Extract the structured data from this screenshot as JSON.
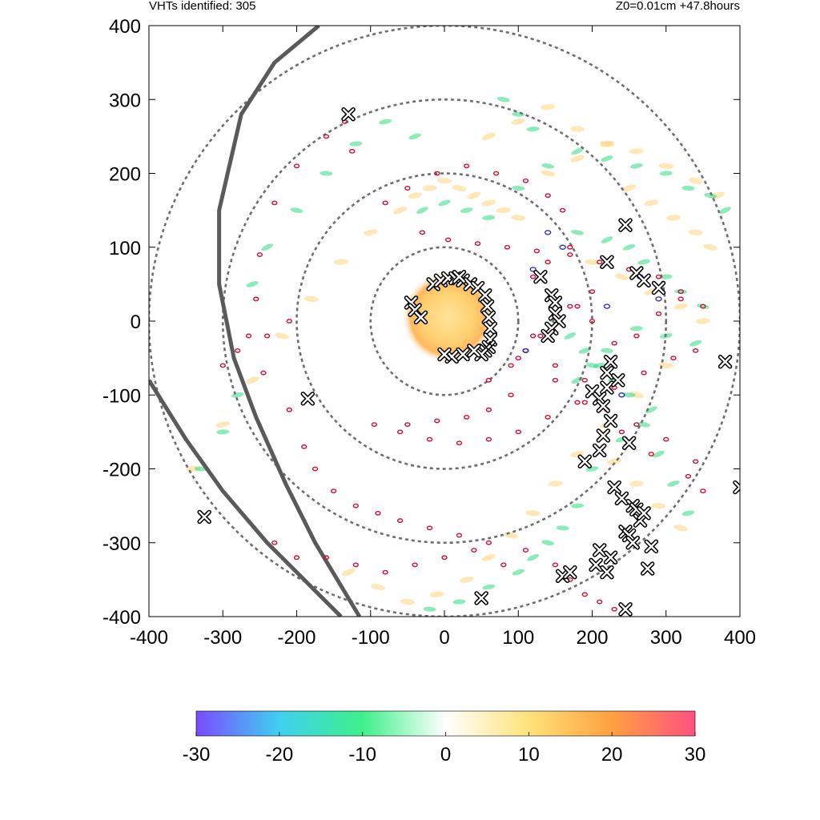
{
  "header": {
    "left_text": "VHTs identified: 305",
    "right_text": "Z0=0.01cm  +47.8hours"
  },
  "chart_data": {
    "type": "scatter",
    "title": "",
    "xlabel": "",
    "ylabel": "",
    "xlim": [
      -400,
      400
    ],
    "ylim": [
      -400,
      400
    ],
    "xticks": [
      -400,
      -300,
      -200,
      -100,
      0,
      100,
      200,
      300,
      400
    ],
    "yticks": [
      -400,
      -300,
      -200,
      -100,
      0,
      100,
      200,
      300,
      400
    ],
    "grid": false,
    "range_rings_radius": [
      100,
      200,
      300,
      400
    ],
    "colorbar": {
      "min": -30,
      "max": 30,
      "ticks": [
        -30,
        -20,
        -10,
        0,
        10,
        20,
        30
      ],
      "colors": [
        "#7a4bff",
        "#3fd0f0",
        "#3ef08a",
        "#ffffff",
        "#ffe27a",
        "#ffa040",
        "#ff5080"
      ]
    },
    "coastlines": [
      {
        "points": [
          [
            -170,
            400
          ],
          [
            -230,
            350
          ],
          [
            -275,
            280
          ],
          [
            -305,
            150
          ],
          [
            -305,
            50
          ],
          [
            -285,
            -50
          ],
          [
            -255,
            -130
          ],
          [
            -215,
            -220
          ],
          [
            -175,
            -300
          ],
          [
            -115,
            -400
          ]
        ]
      },
      {
        "points": [
          [
            -400,
            -80
          ],
          [
            -350,
            -160
          ],
          [
            -300,
            -230
          ],
          [
            -240,
            -300
          ],
          [
            -180,
            -360
          ],
          [
            -140,
            -400
          ]
        ]
      }
    ],
    "vht_markers": {
      "x": [
        -130,
        -185,
        -325,
        50,
        130,
        145,
        150,
        150,
        155,
        145,
        140,
        220,
        245,
        260,
        270,
        290,
        380,
        200,
        225,
        220,
        220,
        210,
        215,
        225,
        235,
        190,
        210,
        250,
        215,
        230,
        240,
        255,
        260,
        265,
        270,
        245,
        250,
        280,
        275,
        210,
        205,
        220,
        225,
        255,
        245,
        160,
        170,
        400
      ],
      "y": [
        280,
        -105,
        -265,
        -375,
        60,
        35,
        25,
        10,
        0,
        -10,
        -20,
        80,
        130,
        65,
        55,
        45,
        -55,
        -95,
        -55,
        -70,
        -90,
        -105,
        -115,
        -135,
        -80,
        -190,
        -175,
        -165,
        -155,
        -225,
        -240,
        -250,
        -255,
        -270,
        -260,
        -285,
        -290,
        -305,
        -335,
        -310,
        -330,
        -340,
        -320,
        -300,
        -390,
        -345,
        -340,
        -225
      ]
    },
    "eyewall_markers": {
      "x": [
        -45,
        -40,
        -32,
        -15,
        -5,
        5,
        15,
        25,
        35,
        45,
        55,
        58,
        60,
        62,
        62,
        60,
        55,
        50,
        40,
        25,
        10,
        0,
        20
      ],
      "y": [
        25,
        15,
        5,
        50,
        55,
        58,
        58,
        55,
        50,
        45,
        35,
        20,
        5,
        -10,
        -25,
        -35,
        -40,
        -45,
        -40,
        -45,
        -48,
        -45,
        60
      ]
    },
    "red_contours": {
      "x": [
        -125,
        -135,
        -160,
        -200,
        -230,
        -250,
        -255,
        -265,
        -245,
        -210,
        -190,
        -175,
        -150,
        -120,
        -90,
        -60,
        -20,
        20,
        60,
        110,
        150,
        170,
        190,
        210,
        230,
        -80,
        -50,
        -10,
        30,
        70,
        110,
        140,
        160,
        -30,
        5,
        45,
        85,
        125,
        170,
        210,
        250,
        290,
        320,
        350,
        -95,
        -60,
        -20,
        20,
        60,
        100,
        140,
        180,
        230,
        270,
        310,
        340,
        150,
        190,
        220,
        260,
        300,
        340,
        -230,
        -200,
        -160,
        -120,
        -80,
        -40,
        0,
        40,
        80,
        -300,
        -280,
        -240,
        -210,
        120,
        100,
        150,
        190,
        240,
        280,
        330,
        350,
        180,
        200,
        230,
        260,
        290,
        320,
        120,
        140,
        170,
        90,
        60,
        30,
        -10,
        -50,
        60,
        90,
        110,
        130,
        150,
        170,
        200
      ],
      "y": [
        230,
        270,
        250,
        210,
        160,
        90,
        30,
        -20,
        -70,
        -120,
        -170,
        -200,
        -230,
        -250,
        -260,
        -270,
        -280,
        -290,
        -300,
        -310,
        -330,
        -350,
        -370,
        -380,
        -390,
        160,
        180,
        200,
        210,
        200,
        190,
        170,
        150,
        120,
        110,
        105,
        100,
        95,
        90,
        80,
        70,
        60,
        40,
        20,
        -140,
        -150,
        -160,
        -165,
        -160,
        -150,
        -130,
        -110,
        -90,
        -70,
        -50,
        -40,
        -60,
        -80,
        -120,
        -140,
        -160,
        -190,
        -300,
        -320,
        -320,
        -330,
        -340,
        -330,
        -320,
        -310,
        -330,
        -60,
        -40,
        -20,
        0,
        -20,
        -50,
        -80,
        -110,
        -150,
        -180,
        -210,
        -230,
        20,
        0,
        -30,
        -20,
        10,
        30,
        60,
        80,
        100,
        -100,
        -120,
        -130,
        -135,
        -140,
        -80,
        -60,
        -40,
        -20,
        0,
        20,
        40
      ]
    },
    "blue_contours": {
      "x": [
        120,
        200,
        225,
        240,
        265,
        290,
        220,
        160,
        140,
        110
      ],
      "y": [
        70,
        -95,
        -55,
        -100,
        60,
        30,
        20,
        100,
        120,
        -40
      ]
    },
    "green_features": {
      "x": [
        -30,
        0,
        30,
        60,
        100,
        140,
        180,
        220,
        260,
        300,
        330,
        360,
        380,
        340,
        300,
        260,
        220,
        200,
        180,
        -40,
        -80,
        -120,
        -160,
        -200,
        -240,
        -260,
        -280,
        -300,
        -330,
        180,
        220,
        250,
        270,
        300,
        320,
        350,
        280,
        240,
        200,
        180,
        160,
        140,
        120,
        100,
        60,
        20,
        -20,
        150,
        170,
        190,
        210,
        230,
        250,
        270,
        290,
        310,
        330,
        120,
        100,
        80
      ],
      "y": [
        150,
        160,
        150,
        140,
        180,
        210,
        230,
        220,
        210,
        200,
        180,
        170,
        150,
        -30,
        -20,
        -10,
        -40,
        -60,
        -80,
        250,
        270,
        240,
        200,
        150,
        100,
        50,
        -100,
        -150,
        -200,
        120,
        110,
        100,
        80,
        60,
        40,
        20,
        -120,
        -160,
        -200,
        -250,
        -280,
        -300,
        -320,
        -340,
        -360,
        -380,
        -390,
        0,
        -20,
        -40,
        -60,
        -80,
        -100,
        -140,
        -180,
        -220,
        -260,
        260,
        280,
        300
      ]
    },
    "yellow_features": {
      "x": [
        -60,
        -40,
        -20,
        0,
        20,
        40,
        60,
        80,
        100,
        140,
        180,
        220,
        260,
        300,
        340,
        370,
        -100,
        -140,
        -180,
        -220,
        -260,
        -300,
        -340,
        200,
        240,
        280,
        320,
        350,
        300,
        260,
        220,
        180,
        150,
        120,
        90,
        60,
        30,
        -10,
        -50,
        -90,
        -130,
        230,
        260,
        290,
        320,
        250,
        280,
        310,
        340,
        360,
        60,
        100,
        140,
        180,
        220
      ],
      "y": [
        150,
        170,
        180,
        190,
        180,
        170,
        160,
        150,
        140,
        200,
        220,
        240,
        230,
        210,
        190,
        170,
        120,
        80,
        30,
        -20,
        -80,
        -140,
        -200,
        80,
        60,
        40,
        20,
        0,
        -60,
        -100,
        -140,
        -180,
        -220,
        -260,
        -290,
        -320,
        -350,
        -370,
        -380,
        -360,
        -340,
        -190,
        -220,
        -250,
        -280,
        180,
        160,
        140,
        120,
        100,
        250,
        270,
        290,
        260,
        240
      ]
    },
    "eye_core": {
      "x": 5,
      "y": 5,
      "radius": 55
    }
  }
}
